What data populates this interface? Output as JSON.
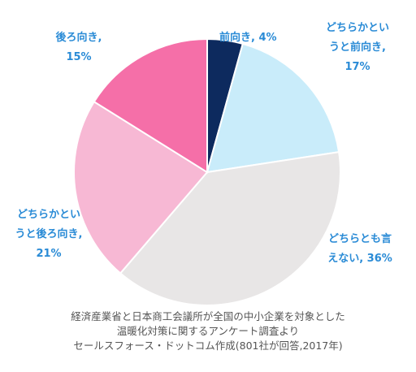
{
  "chart_data": {
    "type": "pie",
    "slices": [
      {
        "label_lines": [
          "前向き, 4%"
        ],
        "label": "前向き",
        "value": 4,
        "color": "#0d2a5e"
      },
      {
        "label_lines": [
          "どちらかとい",
          "うと前向き,",
          "17%"
        ],
        "label": "どちらかというと前向き",
        "value": 17,
        "color": "#c9ecfa"
      },
      {
        "label_lines": [
          "どちらとも言",
          "えない, 36%"
        ],
        "label": "どちらとも言えない",
        "value": 36,
        "color": "#e8e6e6"
      },
      {
        "label_lines": [
          "どちらかとい",
          "うと後ろ向き,",
          "21%"
        ],
        "label": "どちらかというと後ろ向き",
        "value": 21,
        "color": "#f7b8d4"
      },
      {
        "label_lines": [
          "後ろ向き,",
          "15%"
        ],
        "label": "後ろ向き",
        "value": 15,
        "color": "#f56fa8"
      }
    ],
    "start_angle_deg": 0,
    "direction": "clockwise"
  },
  "caption": {
    "line1": "経済産業省と日本商工会議所が全国の中小企業を対象とした",
    "line2": "温暖化対策に関するアンケート調査より",
    "line3": "セールスフォース・ドットコム作成(801社が回答,2017年)"
  },
  "colors": {
    "label_text": "#2a8bd6",
    "caption_text": "#555555"
  }
}
